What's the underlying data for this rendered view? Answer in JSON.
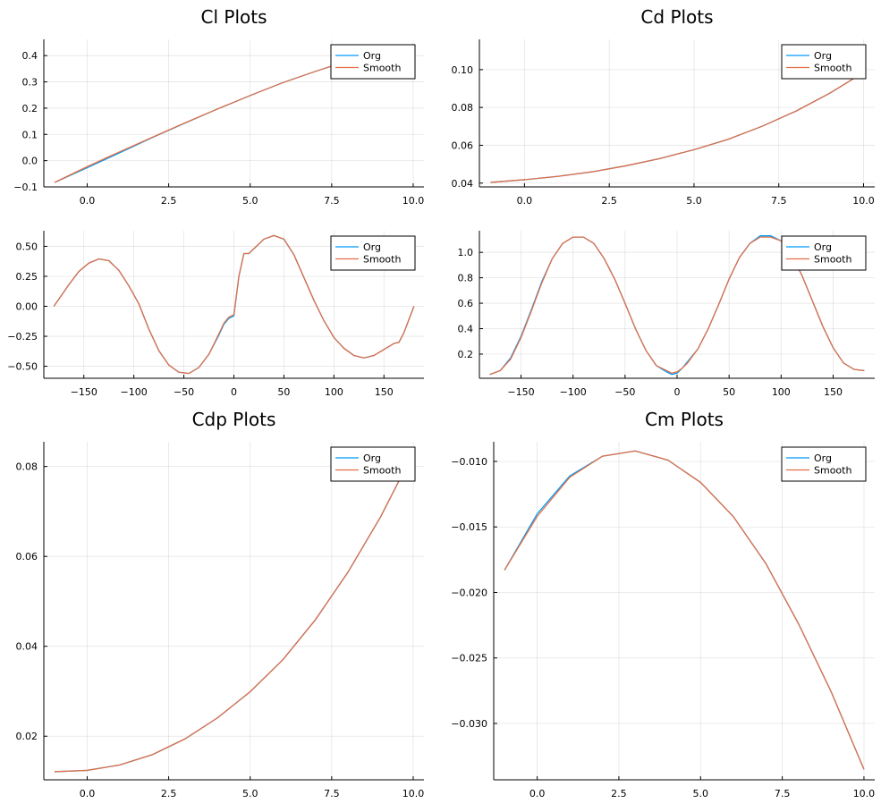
{
  "chart_data": [
    {
      "type": "line",
      "title": "Cl Plots",
      "xlabel": "",
      "ylabel": "",
      "xlim": [
        -1.33,
        10.33
      ],
      "ylim": [
        -0.1,
        0.462
      ],
      "xticks": [
        0.0,
        2.5,
        5.0,
        7.5,
        10.0
      ],
      "xtick_labels": [
        "0.0",
        "2.5",
        "5.0",
        "7.5",
        "10.0"
      ],
      "yticks": [
        -0.1,
        0.0,
        0.1,
        0.2,
        0.3,
        0.4
      ],
      "ytick_labels": [
        "−0.1",
        "0.0",
        "0.1",
        "0.2",
        "0.3",
        "0.4"
      ],
      "grid": true,
      "legend_position": "top-right",
      "series": [
        {
          "name": "Org",
          "color": "#009af9",
          "x": [
            -1,
            0,
            1,
            2,
            3,
            4,
            5,
            6,
            7,
            8,
            9,
            10
          ],
          "y": [
            -0.083,
            -0.027,
            0.03,
            0.088,
            0.143,
            0.197,
            0.248,
            0.297,
            0.34,
            0.38,
            0.413,
            0.442
          ]
        },
        {
          "name": "Smooth",
          "color": "#e26f46",
          "x": [
            -1,
            0,
            1,
            2,
            3,
            4,
            5,
            6,
            7,
            8,
            9,
            10
          ],
          "y": [
            -0.083,
            -0.023,
            0.034,
            0.089,
            0.144,
            0.197,
            0.248,
            0.297,
            0.34,
            0.38,
            0.413,
            0.442
          ]
        }
      ]
    },
    {
      "type": "line",
      "title": "Cd Plots",
      "xlabel": "",
      "ylabel": "",
      "xlim": [
        -1.33,
        10.33
      ],
      "ylim": [
        0.038,
        0.116
      ],
      "xticks": [
        0.0,
        2.5,
        5.0,
        7.5,
        10.0
      ],
      "xtick_labels": [
        "0.0",
        "2.5",
        "5.0",
        "7.5",
        "10.0"
      ],
      "yticks": [
        0.04,
        0.06,
        0.08,
        0.1
      ],
      "ytick_labels": [
        "0.04",
        "0.06",
        "0.08",
        "0.10"
      ],
      "grid": true,
      "legend_position": "top-right",
      "series": [
        {
          "name": "Org",
          "color": "#009af9",
          "x": [
            -1,
            0,
            1,
            2,
            3,
            4,
            5,
            6,
            7,
            8,
            9,
            10
          ],
          "y": [
            0.0404,
            0.0418,
            0.0436,
            0.046,
            0.0492,
            0.053,
            0.0577,
            0.0631,
            0.07,
            0.078,
            0.0875,
            0.0985
          ]
        },
        {
          "name": "Smooth",
          "color": "#e26f46",
          "x": [
            -1,
            0,
            1,
            2,
            3,
            4,
            5,
            6,
            7,
            8,
            9,
            10
          ],
          "y": [
            0.0404,
            0.0418,
            0.0436,
            0.046,
            0.0492,
            0.053,
            0.0577,
            0.0631,
            0.07,
            0.078,
            0.0875,
            0.0985
          ]
        }
      ]
    },
    {
      "type": "line",
      "title": "",
      "xlabel": "",
      "ylabel": "",
      "xlim": [
        -190,
        190
      ],
      "ylim": [
        -0.6,
        0.63
      ],
      "xticks": [
        -150,
        -100,
        -50,
        0,
        50,
        100,
        150
      ],
      "xtick_labels": [
        "−150",
        "−100",
        "−50",
        "0",
        "50",
        "100",
        "150"
      ],
      "yticks": [
        -0.5,
        -0.25,
        0.0,
        0.25,
        0.5
      ],
      "ytick_labels": [
        "−0.50",
        "−0.25",
        "0.00",
        "0.25",
        "0.50"
      ],
      "grid": true,
      "legend_position": "top-right",
      "series": [
        {
          "name": "Org",
          "color": "#009af9",
          "x": [
            -180,
            -175,
            -165,
            -155,
            -145,
            -135,
            -125,
            -115,
            -105,
            -95,
            -85,
            -75,
            -65,
            -55,
            -45,
            -35,
            -25,
            -15,
            -10,
            -5,
            0,
            5,
            10,
            15,
            20,
            30,
            40,
            50,
            60,
            70,
            80,
            90,
            100,
            110,
            120,
            130,
            140,
            150,
            160,
            165,
            170,
            180
          ],
          "y": [
            0.0,
            0.06,
            0.18,
            0.29,
            0.36,
            0.395,
            0.38,
            0.3,
            0.17,
            0.02,
            -0.19,
            -0.37,
            -0.49,
            -0.55,
            -0.56,
            -0.51,
            -0.4,
            -0.24,
            -0.15,
            -0.1,
            -0.08,
            0.25,
            0.44,
            0.44,
            0.48,
            0.56,
            0.59,
            0.56,
            0.43,
            0.24,
            0.05,
            -0.12,
            -0.26,
            -0.35,
            -0.41,
            -0.43,
            -0.41,
            -0.36,
            -0.31,
            -0.3,
            -0.22,
            0.0
          ]
        },
        {
          "name": "Smooth",
          "color": "#e26f46",
          "x": [
            -180,
            -175,
            -165,
            -155,
            -145,
            -135,
            -125,
            -115,
            -105,
            -95,
            -85,
            -75,
            -65,
            -55,
            -45,
            -35,
            -25,
            -15,
            -10,
            -5,
            0,
            5,
            10,
            15,
            20,
            30,
            40,
            50,
            60,
            70,
            80,
            90,
            100,
            110,
            120,
            130,
            140,
            150,
            160,
            165,
            170,
            180
          ],
          "y": [
            0.0,
            0.06,
            0.18,
            0.29,
            0.36,
            0.395,
            0.38,
            0.3,
            0.17,
            0.02,
            -0.19,
            -0.37,
            -0.49,
            -0.55,
            -0.56,
            -0.51,
            -0.4,
            -0.23,
            -0.14,
            -0.09,
            -0.07,
            0.25,
            0.44,
            0.44,
            0.48,
            0.56,
            0.59,
            0.56,
            0.43,
            0.24,
            0.05,
            -0.12,
            -0.26,
            -0.35,
            -0.41,
            -0.43,
            -0.41,
            -0.36,
            -0.31,
            -0.3,
            -0.22,
            0.0
          ]
        }
      ]
    },
    {
      "type": "line",
      "title": "",
      "xlabel": "",
      "ylabel": "",
      "xlim": [
        -190,
        190
      ],
      "ylim": [
        0.01,
        1.17
      ],
      "xticks": [
        -150,
        -100,
        -50,
        0,
        50,
        100,
        150
      ],
      "xtick_labels": [
        "−150",
        "−100",
        "−50",
        "0",
        "50",
        "100",
        "150"
      ],
      "yticks": [
        0.2,
        0.4,
        0.6,
        0.8,
        1.0
      ],
      "ytick_labels": [
        "0.2",
        "0.4",
        "0.6",
        "0.8",
        "1.0"
      ],
      "grid": true,
      "legend_position": "top-right",
      "series": [
        {
          "name": "Org",
          "color": "#009af9",
          "x": [
            -180,
            -170,
            -160,
            -150,
            -140,
            -130,
            -120,
            -110,
            -100,
            -90,
            -80,
            -70,
            -60,
            -50,
            -40,
            -30,
            -20,
            -10,
            -5,
            0,
            5,
            10,
            20,
            30,
            40,
            50,
            60,
            70,
            80,
            90,
            100,
            110,
            120,
            130,
            140,
            150,
            160,
            170,
            180
          ],
          "y": [
            0.04,
            0.07,
            0.17,
            0.34,
            0.55,
            0.77,
            0.95,
            1.07,
            1.12,
            1.12,
            1.07,
            0.95,
            0.79,
            0.6,
            0.4,
            0.23,
            0.11,
            0.06,
            0.04,
            0.05,
            0.09,
            0.14,
            0.24,
            0.4,
            0.59,
            0.79,
            0.96,
            1.07,
            1.13,
            1.13,
            1.09,
            0.98,
            0.82,
            0.62,
            0.42,
            0.25,
            0.13,
            0.08,
            0.07
          ]
        },
        {
          "name": "Smooth",
          "color": "#e26f46",
          "x": [
            -180,
            -170,
            -160,
            -150,
            -140,
            -130,
            -120,
            -110,
            -100,
            -90,
            -80,
            -70,
            -60,
            -50,
            -40,
            -30,
            -20,
            -10,
            -5,
            0,
            5,
            10,
            20,
            30,
            40,
            50,
            60,
            70,
            80,
            90,
            100,
            110,
            120,
            130,
            140,
            150,
            160,
            170,
            180
          ],
          "y": [
            0.04,
            0.07,
            0.16,
            0.33,
            0.54,
            0.76,
            0.95,
            1.07,
            1.12,
            1.12,
            1.07,
            0.95,
            0.79,
            0.6,
            0.4,
            0.23,
            0.11,
            0.07,
            0.05,
            0.06,
            0.09,
            0.13,
            0.24,
            0.4,
            0.59,
            0.79,
            0.96,
            1.07,
            1.12,
            1.12,
            1.09,
            0.98,
            0.82,
            0.62,
            0.42,
            0.25,
            0.13,
            0.08,
            0.07
          ]
        }
      ]
    },
    {
      "type": "line",
      "title": "Cdp Plots",
      "xlabel": "",
      "ylabel": "",
      "xlim": [
        -1.33,
        10.33
      ],
      "ylim": [
        0.0103,
        0.0855
      ],
      "xticks": [
        0.0,
        2.5,
        5.0,
        7.5,
        10.0
      ],
      "xtick_labels": [
        "0.0",
        "2.5",
        "5.0",
        "7.5",
        "10.0"
      ],
      "yticks": [
        0.02,
        0.04,
        0.06,
        0.08
      ],
      "ytick_labels": [
        "0.02",
        "0.04",
        "0.06",
        "0.08"
      ],
      "grid": true,
      "legend_position": "top-right",
      "series": [
        {
          "name": "Org",
          "color": "#009af9",
          "x": [
            -1,
            0,
            1,
            2,
            3,
            4,
            5,
            6,
            7,
            8,
            9,
            10
          ],
          "y": [
            0.0121,
            0.0124,
            0.0136,
            0.0159,
            0.0194,
            0.0241,
            0.0299,
            0.037,
            0.0459,
            0.0565,
            0.0688,
            0.083
          ]
        },
        {
          "name": "Smooth",
          "color": "#e26f46",
          "x": [
            -1,
            0,
            1,
            2,
            3,
            4,
            5,
            6,
            7,
            8,
            9,
            10
          ],
          "y": [
            0.0121,
            0.0124,
            0.0136,
            0.0159,
            0.0194,
            0.0241,
            0.0299,
            0.037,
            0.0459,
            0.0565,
            0.0688,
            0.083
          ]
        }
      ]
    },
    {
      "type": "line",
      "title": "Cm Plots",
      "xlabel": "",
      "ylabel": "",
      "xlim": [
        -1.33,
        10.33
      ],
      "ylim": [
        -0.0343,
        -0.0085
      ],
      "xticks": [
        0.0,
        2.5,
        5.0,
        7.5,
        10.0
      ],
      "xtick_labels": [
        "0.0",
        "2.5",
        "5.0",
        "7.5",
        "10.0"
      ],
      "yticks": [
        -0.01,
        -0.015,
        -0.02,
        -0.025,
        -0.03
      ],
      "ytick_labels": [
        "−0.010",
        "−0.015",
        "−0.020",
        "−0.025",
        "−0.030"
      ],
      "grid": true,
      "legend_position": "top-right",
      "series": [
        {
          "name": "Org",
          "color": "#009af9",
          "x": [
            -1,
            0,
            1,
            2,
            3,
            4,
            5,
            6,
            7,
            8,
            9,
            10
          ],
          "y": [
            -0.0183,
            -0.014,
            -0.0111,
            -0.0096,
            -0.0092,
            -0.0099,
            -0.0116,
            -0.0142,
            -0.0178,
            -0.0224,
            -0.0276,
            -0.0335
          ]
        },
        {
          "name": "Smooth",
          "color": "#e26f46",
          "x": [
            -1,
            0,
            1,
            2,
            3,
            4,
            5,
            6,
            7,
            8,
            9,
            10
          ],
          "y": [
            -0.0183,
            -0.0142,
            -0.0112,
            -0.0096,
            -0.0092,
            -0.0099,
            -0.0116,
            -0.0142,
            -0.0178,
            -0.0224,
            -0.0276,
            -0.0335
          ]
        }
      ]
    }
  ]
}
